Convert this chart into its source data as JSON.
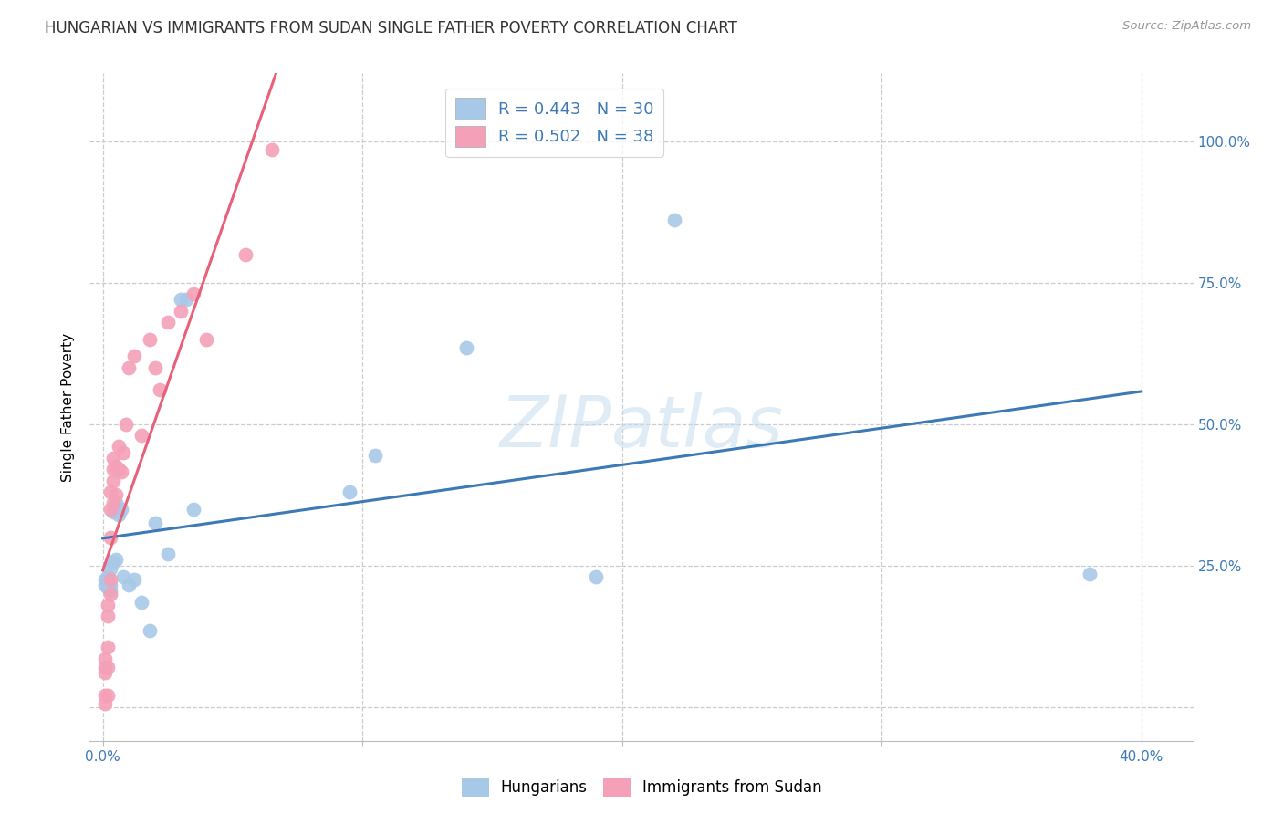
{
  "title": "HUNGARIAN VS IMMIGRANTS FROM SUDAN SINGLE FATHER POVERTY CORRELATION CHART",
  "source": "Source: ZipAtlas.com",
  "ylabel": "Single Father Poverty",
  "blue_color": "#a8c8e8",
  "pink_color": "#f4a0b8",
  "blue_line_color": "#3d7ab5",
  "pink_line_color": "#e8607a",
  "legend_label1": "Hungarians",
  "legend_label2": "Immigrants from Sudan",
  "legend_r1": "R = 0.443   N = 30",
  "legend_r2": "R = 0.502   N = 38",
  "watermark_text": "ZIPatlas",
  "hungarian_x": [
    0.001,
    0.001,
    0.002,
    0.002,
    0.002,
    0.003,
    0.003,
    0.003,
    0.004,
    0.004,
    0.005,
    0.005,
    0.006,
    0.007,
    0.008,
    0.01,
    0.012,
    0.015,
    0.018,
    0.02,
    0.025,
    0.03,
    0.032,
    0.035,
    0.095,
    0.105,
    0.14,
    0.19,
    0.22,
    0.38
  ],
  "hungarian_y": [
    0.225,
    0.215,
    0.23,
    0.22,
    0.21,
    0.245,
    0.215,
    0.205,
    0.255,
    0.345,
    0.36,
    0.26,
    0.34,
    0.35,
    0.23,
    0.215,
    0.225,
    0.185,
    0.135,
    0.325,
    0.27,
    0.72,
    0.72,
    0.35,
    0.38,
    0.445,
    0.635,
    0.23,
    0.86,
    0.235
  ],
  "sudan_x": [
    0.001,
    0.001,
    0.001,
    0.001,
    0.001,
    0.002,
    0.002,
    0.002,
    0.002,
    0.002,
    0.003,
    0.003,
    0.003,
    0.003,
    0.003,
    0.004,
    0.004,
    0.004,
    0.004,
    0.005,
    0.005,
    0.006,
    0.006,
    0.007,
    0.008,
    0.009,
    0.01,
    0.012,
    0.015,
    0.018,
    0.02,
    0.022,
    0.025,
    0.03,
    0.035,
    0.04,
    0.055,
    0.065
  ],
  "sudan_y": [
    0.005,
    0.02,
    0.06,
    0.07,
    0.085,
    0.07,
    0.105,
    0.16,
    0.18,
    0.02,
    0.2,
    0.225,
    0.3,
    0.35,
    0.38,
    0.36,
    0.4,
    0.42,
    0.44,
    0.375,
    0.425,
    0.42,
    0.46,
    0.415,
    0.45,
    0.5,
    0.6,
    0.62,
    0.48,
    0.65,
    0.6,
    0.56,
    0.68,
    0.7,
    0.73,
    0.65,
    0.8,
    0.985
  ],
  "x_lim": [
    -0.005,
    0.42
  ],
  "y_lim": [
    -0.06,
    1.12
  ],
  "x_ticks": [
    0.0,
    0.1,
    0.2,
    0.3,
    0.4
  ],
  "y_ticks": [
    0.0,
    0.25,
    0.5,
    0.75,
    1.0
  ],
  "grid_color": "#cccccc",
  "title_fontsize": 12,
  "tick_fontsize": 11
}
